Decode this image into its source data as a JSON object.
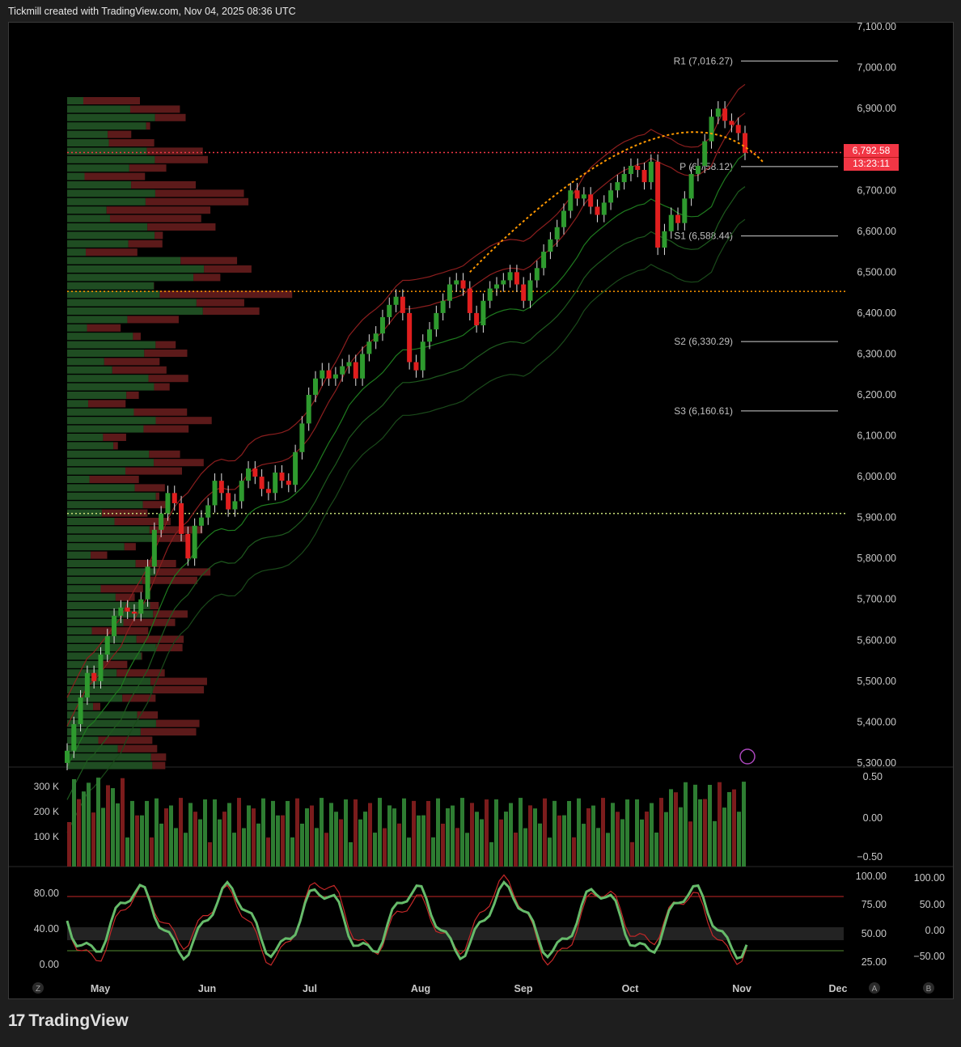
{
  "header": {
    "caption": "Tickmill created with TradingView.com, Nov 04, 2025 08:36 UTC"
  },
  "footer": {
    "logo_text": "TradingView",
    "logo_mark": "17"
  },
  "price_tag": {
    "price": "6,792.58",
    "countdown": "13:23:11"
  },
  "chart_data": {
    "type": "candlestick",
    "x_months": [
      "May",
      "Jun",
      "Jul",
      "Aug",
      "Sep",
      "Oct",
      "Nov",
      "Dec"
    ],
    "y_ticks": [
      "7,100.00",
      "7,000.00",
      "6,900.00",
      "6,800.00",
      "6,700.00",
      "6,600.00",
      "6,500.00",
      "6,400.00",
      "6,300.00",
      "6,200.00",
      "6,100.00",
      "6,000.00",
      "5,900.00",
      "5,800.00",
      "5,700.00",
      "5,600.00",
      "5,500.00",
      "5,400.00",
      "5,300.00"
    ],
    "ylim": [
      5290,
      7110
    ],
    "pivot_levels": [
      {
        "label": "R1 (7,016.27)",
        "value": 7016.27
      },
      {
        "label": "P (6,758.12)",
        "value": 6758.12
      },
      {
        "label": "S1 (6,588.44)",
        "value": 6588.44
      },
      {
        "label": "S2 (6,330.29)",
        "value": 6330.29
      },
      {
        "label": "S3 (6,160.61)",
        "value": 6160.61
      }
    ],
    "horizontal_lines": [
      {
        "value": 6792.58,
        "style": "dotted",
        "color": "#f23645"
      },
      {
        "value": 6453,
        "style": "dotted",
        "color": "#ff9800"
      },
      {
        "value": 5910,
        "style": "dotted",
        "color": "#c9e07a"
      }
    ],
    "candles_close": [
      5330,
      5395,
      5460,
      5520,
      5500,
      5565,
      5610,
      5660,
      5680,
      5670,
      5665,
      5700,
      5780,
      5870,
      5910,
      5960,
      5935,
      5860,
      5800,
      5880,
      5900,
      5930,
      5990,
      5960,
      5920,
      5940,
      5990,
      6020,
      6000,
      5970,
      5960,
      6010,
      5990,
      5980,
      6060,
      6130,
      6200,
      6240,
      6260,
      6240,
      6250,
      6270,
      6280,
      6240,
      6300,
      6330,
      6350,
      6390,
      6420,
      6440,
      6400,
      6280,
      6260,
      6330,
      6360,
      6400,
      6430,
      6470,
      6480,
      6460,
      6400,
      6370,
      6430,
      6460,
      6470,
      6480,
      6500,
      6470,
      6430,
      6480,
      6510,
      6550,
      6580,
      6610,
      6650,
      6700,
      6680,
      6690,
      6660,
      6640,
      6670,
      6700,
      6720,
      6740,
      6760,
      6750,
      6720,
      6770,
      6560,
      6600,
      6640,
      6620,
      6680,
      6740,
      6760,
      6820,
      6880,
      6900,
      6870,
      6860,
      6840,
      6792
    ],
    "volume_axis": [
      "300 K",
      "200 K",
      "100 K"
    ],
    "volume_right_axis": [
      "0.50",
      "0.00",
      "−0.50"
    ],
    "stoch_left_axis": [
      "80.00",
      "40.00",
      "0.00"
    ],
    "stoch_right_axis_1": [
      "100.00",
      "75.00",
      "50.00",
      "25.00"
    ],
    "stoch_right_axis_2": [
      "100.00",
      "50.00",
      "0.00",
      "−50.00"
    ],
    "corner_labels": [
      "Z",
      "A",
      "B"
    ]
  },
  "colors": {
    "up": "#26a69a",
    "upDark": "#1b5e20",
    "down": "#f23645",
    "bg": "#000000",
    "bandRed": "#8b1e1e",
    "bandGreen": "#1e5a1e",
    "orange": "#ff9800"
  }
}
